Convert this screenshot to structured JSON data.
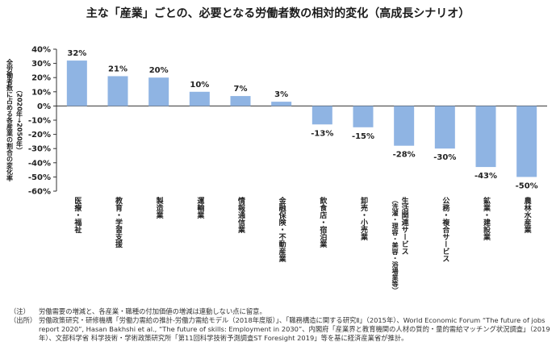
{
  "title": "主な「産業」ごとの、必要となる労働者数の相対的変化（高成長シナリオ）",
  "chart_data": {
    "type": "bar",
    "ylabel_lines": [
      "全労働者数に占める各産業の割合の変化率",
      "（2020年→2050年）"
    ],
    "ylim": [
      -60,
      40
    ],
    "yticks": [
      "40%",
      "30%",
      "20%",
      "10%",
      "0%",
      "-10%",
      "-20%",
      "-30%",
      "-40%",
      "-50%",
      "-60%"
    ],
    "ytick_values": [
      40,
      30,
      20,
      10,
      0,
      -10,
      -20,
      -30,
      -40,
      -50,
      -60
    ],
    "categories": [
      "医療・福祉",
      "教育・学習支援",
      "製造業",
      "運輸業",
      "情報通信業",
      "金融保険・不動産業",
      "飲食店・宿泊業",
      "卸売・小売業",
      "生活関連サービス",
      "公務・複合サービス",
      "鉱業・建設業",
      "農林水産業"
    ],
    "category_sublabels": [
      "",
      "",
      "",
      "",
      "",
      "",
      "",
      "",
      "（洗濯・理容・美容・浴場業等）",
      "",
      "",
      ""
    ],
    "values": [
      32,
      21,
      20,
      10,
      7,
      3,
      -13,
      -15,
      -28,
      -30,
      -43,
      -50
    ],
    "value_labels": [
      "32%",
      "21%",
      "20%",
      "10%",
      "7%",
      "3%",
      "-13%",
      "-15%",
      "-28%",
      "-30%",
      "-43%",
      "-50%"
    ],
    "bar_color": "#8fb4e3",
    "grid": false
  },
  "notes": {
    "note_label": "（注）",
    "note_text": "労働需要の増減と、各産業・職種の付加価値の増減は連動しない点に留意。",
    "source_label": "（出所）",
    "source_text": "労働政策研究・研修機構「労働力需給の推計-労働力需給モデル（2018年度版）」、「職務構造に関する研究Ⅱ」（2015年）、World Economic Forum “The future of jobs report 2020”, Hasan Bakhshi et al., “The future of skills: Employment in 2030”、内閣府「産業界と教育機関の人材の質的・量的需給マッチング状況調査」（2019年）、文部科学省 科学技術・学術政策研究所「第11回科学技術予測調査ST Foresight 2019」等を基に経済産業省が推計。"
  }
}
